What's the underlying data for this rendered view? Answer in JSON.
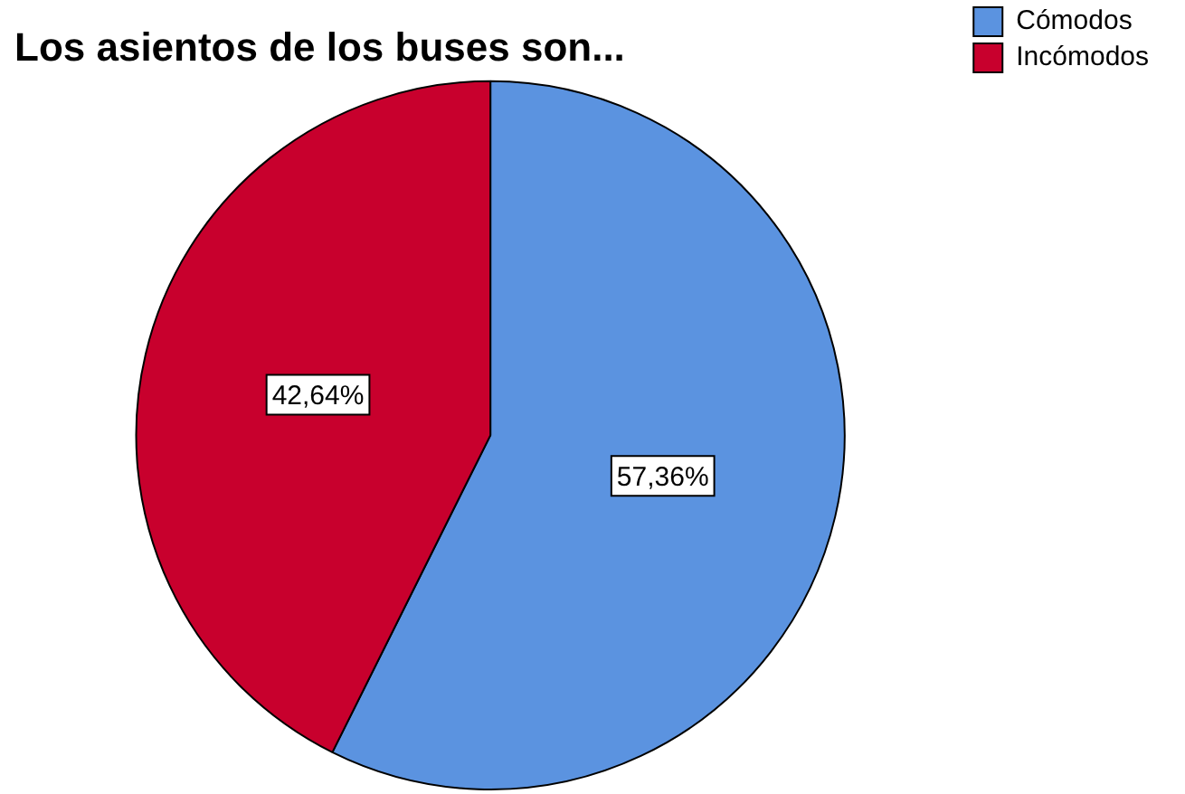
{
  "chart_data": {
    "type": "pie",
    "title": "Los asientos de los buses son...",
    "categories": [
      "Cómodos",
      "Incómodos"
    ],
    "values": [
      57.36,
      42.64
    ],
    "colors": [
      "#5b93e0",
      "#c8002d"
    ],
    "value_labels": [
      "57,36%",
      "42,64%"
    ],
    "legend": "top right"
  }
}
